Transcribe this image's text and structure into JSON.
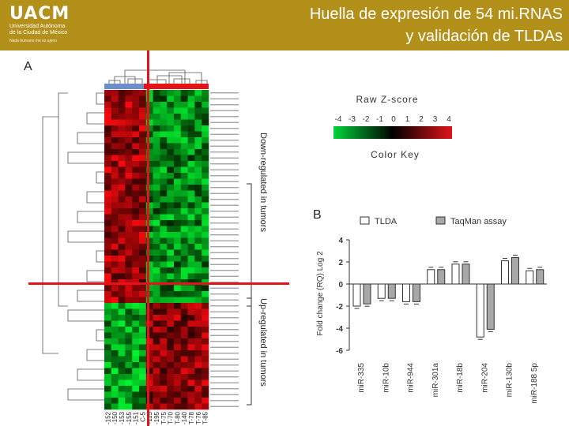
{
  "header": {
    "logo_text": "UACM",
    "logo_sub1": "Universidad Autónoma",
    "logo_sub2": "de la Ciudad de México",
    "logo_motto": "Nada humano me es ajeno",
    "title_line1": "Huella de expresión de 54 mi.RNAS",
    "title_line2": "y validación de TLDAs",
    "bg_color": "#b3901a"
  },
  "panel_a_label": "A",
  "panel_b_label": "B",
  "heatmap": {
    "labels_down": "Down-regulated in tumors",
    "labels_up": "Up-regulated in tumors",
    "columns": [
      "C-152",
      "C-150",
      "C-153",
      "C-155",
      "C-151",
      "C-5",
      "T-115",
      "T-195",
      "T-75",
      "T-70",
      "T-80",
      "T-140",
      "T-78",
      "T-76",
      "T-85"
    ]
  },
  "color_key": {
    "title": "Raw Z-score",
    "ticks": [
      "-4",
      "-3",
      "-2",
      "-1",
      "0",
      "1",
      "2",
      "3",
      "4"
    ],
    "footer": "Color Key"
  },
  "chart_data": {
    "type": "bar",
    "categories": [
      "miR-335",
      "miR-10b",
      "miR-944",
      "miR-301a",
      "miR-18b",
      "miR-204",
      "miR-130b",
      "miR-188 5p"
    ],
    "series": [
      {
        "name": "TLDA",
        "values": [
          -2.0,
          -1.3,
          -1.6,
          1.3,
          1.8,
          -4.8,
          2.1,
          1.2
        ]
      },
      {
        "name": "TaqMan assay",
        "values": [
          -1.8,
          -1.3,
          -1.6,
          1.3,
          1.8,
          -4.1,
          2.4,
          1.3
        ]
      }
    ],
    "ylabel": "Fold change (RQ) Log 2",
    "yticks": [
      "-6",
      "-4",
      "-2",
      "0",
      "2",
      "4"
    ],
    "ylim": [
      -6,
      4
    ],
    "colors": {
      "TLDA": "#ffffff",
      "TaqMan assay": "#a8a8a8"
    }
  }
}
